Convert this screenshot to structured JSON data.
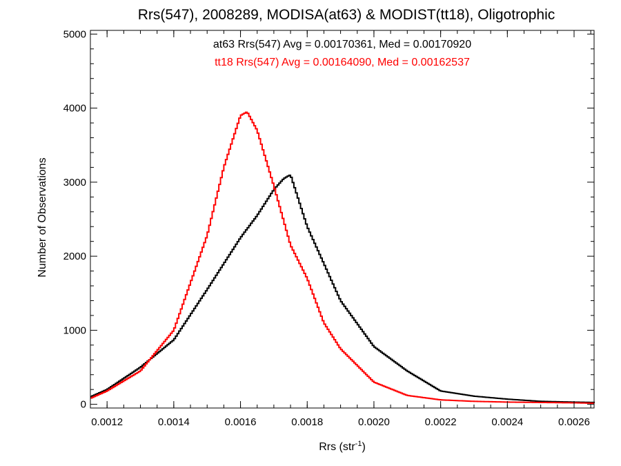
{
  "chart_data": {
    "type": "line",
    "style": "step histogram",
    "title": "Rrs(547), 2008289, MODISA(at63) & MODIST(tt18), Oligotrophic",
    "xlabel": "Rrs (str",
    "xlabel_sup": "-1",
    "xlabel_close": ")",
    "ylabel": "Number of Observations",
    "xlim": [
      0.00115,
      0.00266
    ],
    "ylim": [
      -50,
      5050
    ],
    "x_ticks": [
      "0.0012",
      "0.0014",
      "0.0016",
      "0.0018",
      "0.0020",
      "0.0022",
      "0.0024",
      "0.0026"
    ],
    "x_tick_values": [
      0.0012,
      0.0014,
      0.0016,
      0.0018,
      0.002,
      0.0022,
      0.0024,
      0.0026
    ],
    "y_ticks": [
      "0",
      "1000",
      "2000",
      "3000",
      "4000",
      "5000"
    ],
    "y_tick_values": [
      0,
      1000,
      2000,
      3000,
      4000,
      5000
    ],
    "grid": false,
    "annotations": [
      {
        "text": "at63 Rrs(547) Avg = 0.00170361, Med = 0.00170920",
        "color": "#000000"
      },
      {
        "text": "tt18 Rrs(547) Avg = 0.00164090, Med = 0.00162537",
        "color": "#ff0000"
      }
    ],
    "series": [
      {
        "color": "#000000",
        "x": [
          0.00115,
          0.0012,
          0.0013,
          0.0014,
          0.0015,
          0.0016,
          0.00165,
          0.0017,
          0.00173,
          0.00175,
          0.0018,
          0.00185,
          0.0019,
          0.002,
          0.0021,
          0.0022,
          0.0023,
          0.0024,
          0.0025,
          0.0026,
          0.00266
        ],
        "y": [
          100,
          200,
          500,
          870,
          1550,
          2250,
          2550,
          2900,
          3050,
          3100,
          2400,
          1900,
          1400,
          780,
          450,
          180,
          110,
          70,
          40,
          30,
          25
        ]
      },
      {
        "color": "#ff0000",
        "x": [
          0.00115,
          0.0012,
          0.0013,
          0.0014,
          0.0015,
          0.00155,
          0.0016,
          0.00162,
          0.00165,
          0.0017,
          0.00175,
          0.0018,
          0.00185,
          0.0019,
          0.002,
          0.0021,
          0.0022,
          0.0023,
          0.0024,
          0.0025,
          0.0026,
          0.00266
        ],
        "y": [
          80,
          180,
          450,
          1000,
          2280,
          3200,
          3900,
          3950,
          3700,
          2950,
          2150,
          1700,
          1100,
          750,
          300,
          120,
          60,
          40,
          30,
          25,
          20,
          15
        ]
      }
    ]
  }
}
